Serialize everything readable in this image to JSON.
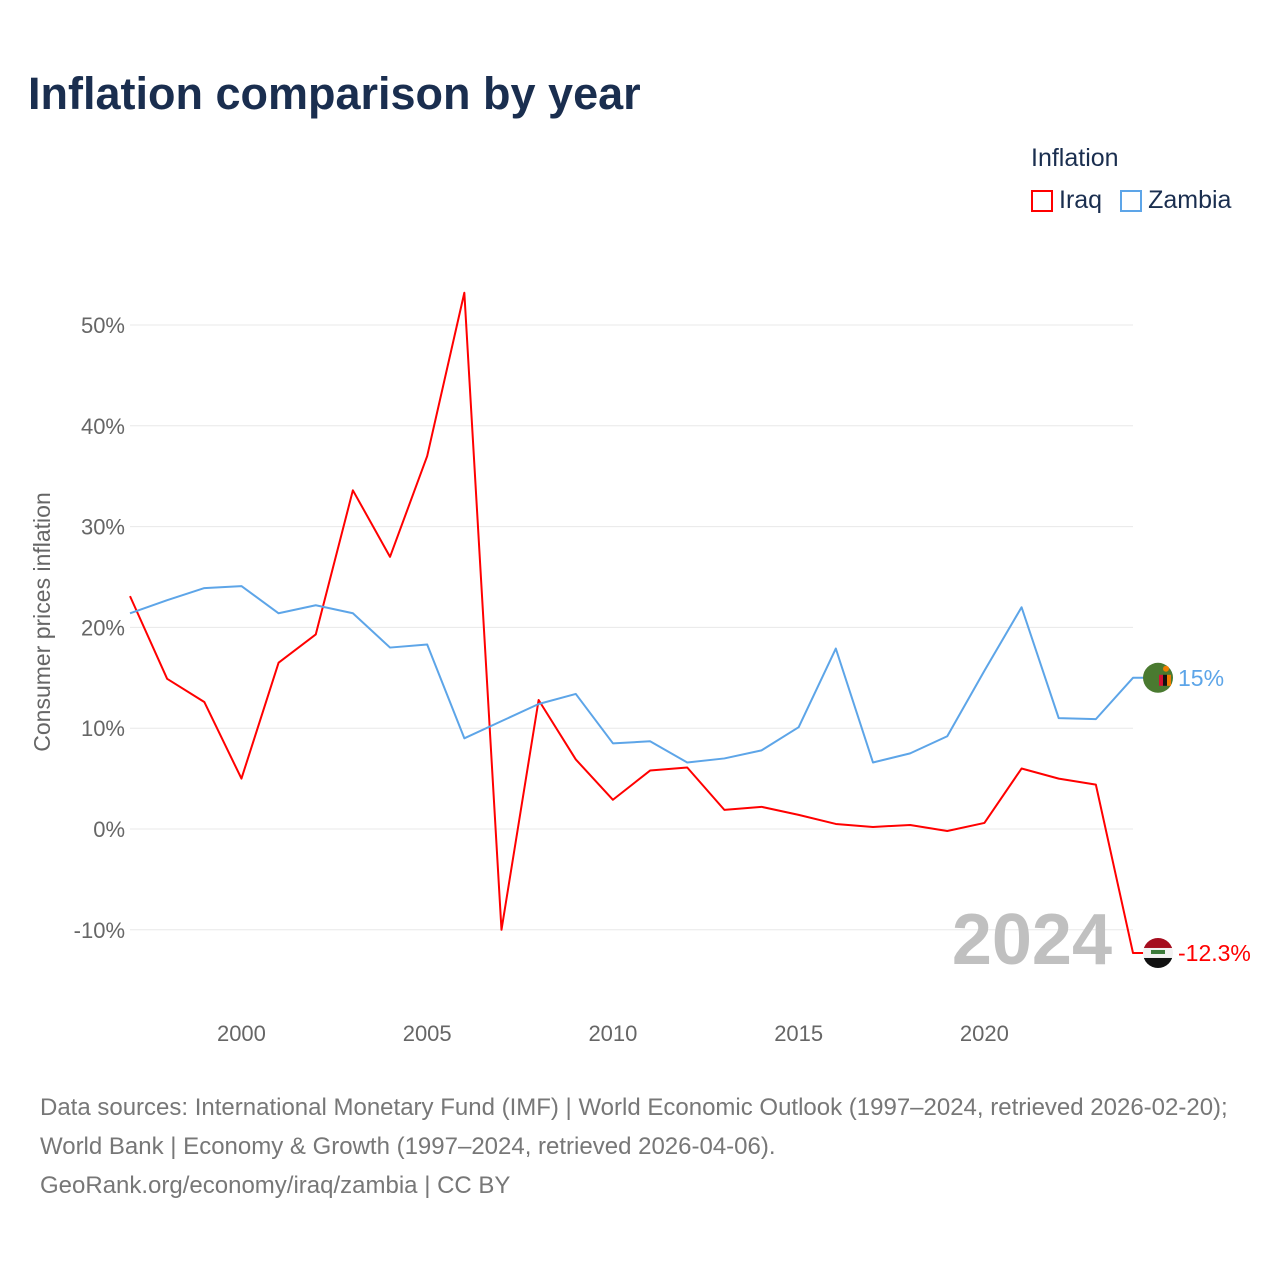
{
  "chart_data": {
    "type": "line",
    "title": "Inflation comparison by year",
    "xlabel": "",
    "ylabel": "Consumer prices inflation",
    "xlim": [
      1997,
      2024
    ],
    "ylim": [
      -15,
      55
    ],
    "yticks": [
      -10,
      0,
      10,
      20,
      30,
      40,
      50
    ],
    "ytick_labels": [
      "-10%",
      "0%",
      "10%",
      "20%",
      "30%",
      "40%",
      "50%"
    ],
    "xticks": [
      2000,
      2005,
      2010,
      2015,
      2020
    ],
    "xtick_labels": [
      "2000",
      "2005",
      "2010",
      "2015",
      "2020"
    ],
    "grid": true,
    "legend_title": "Inflation",
    "legend_position": "top-right",
    "watermark_year": "2024",
    "x": [
      1997,
      1998,
      1999,
      2000,
      2001,
      2002,
      2003,
      2004,
      2005,
      2006,
      2007,
      2008,
      2009,
      2010,
      2011,
      2012,
      2013,
      2014,
      2015,
      2016,
      2017,
      2018,
      2019,
      2020,
      2021,
      2022,
      2023,
      2024
    ],
    "series": [
      {
        "name": "Iraq",
        "color": "#ff0000",
        "end_label": "-12.3%",
        "flag": "iraq-flag",
        "values": [
          23.1,
          14.9,
          12.6,
          5.0,
          16.5,
          19.3,
          33.6,
          27.0,
          37.0,
          53.2,
          -10.0,
          12.8,
          6.9,
          2.9,
          5.8,
          6.1,
          1.9,
          2.2,
          1.4,
          0.5,
          0.2,
          0.4,
          -0.2,
          0.6,
          6.0,
          5.0,
          4.4,
          -12.3
        ]
      },
      {
        "name": "Zambia",
        "color": "#5da5e8",
        "end_label": "15%",
        "flag": "zambia-flag",
        "values": [
          21.4,
          22.7,
          23.9,
          24.1,
          21.4,
          22.2,
          21.4,
          18.0,
          18.3,
          9.0,
          10.7,
          12.4,
          13.4,
          8.5,
          8.7,
          6.6,
          7.0,
          7.8,
          10.1,
          17.9,
          6.6,
          7.5,
          9.2,
          15.7,
          22.0,
          11.0,
          10.9,
          15.0
        ]
      }
    ]
  },
  "footer": {
    "sources": "Data sources: International Monetary Fund (IMF) | World Economic Outlook (1997–2024, retrieved 2026-02-20); World Bank | Economy & Growth (1997–2024, retrieved 2026-04-06).",
    "credit": "GeoRank.org/economy/iraq/zambia | CC BY"
  }
}
